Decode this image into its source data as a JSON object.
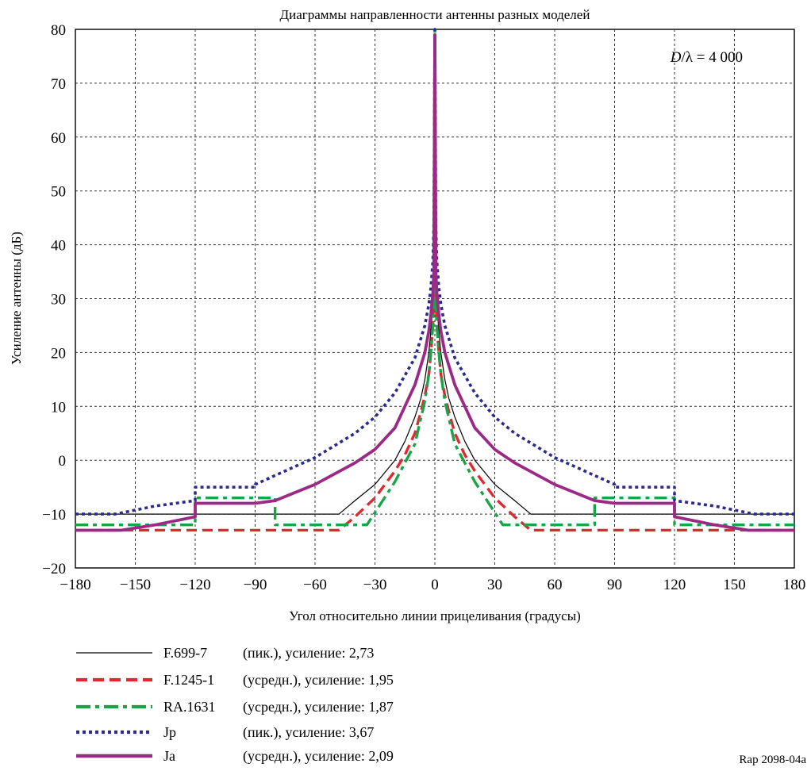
{
  "chart_data": {
    "type": "line",
    "title": "Диаграммы направленности антенны разных моделей",
    "xlabel": "Угол относительно линии прицеливания (градусы)",
    "ylabel": "Усиление антенны (дБ)",
    "xlim": [
      -180,
      180
    ],
    "ylim": [
      -20,
      80
    ],
    "xticks": [
      -180,
      -150,
      -120,
      -90,
      -60,
      -30,
      0,
      30,
      60,
      90,
      120,
      150,
      180
    ],
    "xtick_labels": [
      "−180",
      "−150",
      "−120",
      "−90",
      "−60",
      "−30",
      "0",
      "30",
      "60",
      "90",
      "120",
      "150",
      "180"
    ],
    "yticks": [
      -20,
      -10,
      0,
      10,
      20,
      30,
      40,
      50,
      60,
      70,
      80
    ],
    "ytick_labels": [
      "−20",
      "−10",
      "0",
      "10",
      "20",
      "30",
      "40",
      "50",
      "60",
      "70",
      "80"
    ],
    "grid": true,
    "annotation": {
      "text_prefix": "D",
      "text_suffix": "/λ = 4 000",
      "placement": "top-right"
    },
    "series": [
      {
        "name": "F.699-7",
        "description": "(пик.), усиление: 2,73",
        "color": "#000000",
        "style": "solid-thin",
        "x": [
          -180,
          -48,
          -40,
          -30,
          -20,
          -15,
          -10,
          -7,
          -5,
          -3,
          -2,
          -1,
          -0.5,
          -0.2,
          0,
          0.2,
          0.5,
          1,
          2,
          3,
          5,
          7,
          10,
          15,
          20,
          30,
          40,
          48,
          180
        ],
        "y": [
          -10,
          -10,
          -7.5,
          -4.5,
          0,
          3.5,
          8,
          11.5,
          15,
          20,
          24,
          29,
          35,
          55,
          79,
          55,
          35,
          29,
          24,
          20,
          15,
          11.5,
          8,
          3.5,
          0,
          -4.5,
          -7.5,
          -10,
          -10
        ]
      },
      {
        "name": "F.1245-1",
        "description": "(усредн.), усиление: 1,95",
        "color": "#e0292e",
        "style": "dashed",
        "x": [
          -180,
          -48,
          -40,
          -30,
          -20,
          -15,
          -10,
          -7,
          -5,
          -3,
          -2,
          -1,
          -0.5,
          0,
          0.5,
          1,
          2,
          3,
          5,
          7,
          10,
          15,
          20,
          30,
          40,
          48,
          180
        ],
        "y": [
          -13,
          -13,
          -10.5,
          -7,
          -2,
          1,
          5,
          9,
          12,
          16,
          20,
          25,
          30,
          79,
          30,
          25,
          20,
          16,
          12,
          9,
          5,
          1,
          -2,
          -7,
          -10.5,
          -13,
          -13
        ]
      },
      {
        "name": "RA.1631",
        "description": "(усредн.), усиление: 1,87",
        "color": "#18a548",
        "style": "dashdot",
        "x": [
          -180,
          -120,
          -120,
          -80,
          -80,
          -34,
          -20,
          -10,
          -5,
          -3,
          -2,
          -1,
          -0.5,
          0,
          0.5,
          1,
          2,
          3,
          5,
          10,
          20,
          34,
          80,
          80,
          120,
          120,
          180
        ],
        "y": [
          -12,
          -12,
          -7,
          -7,
          -12,
          -12,
          -4,
          3,
          11,
          16,
          20,
          25,
          29,
          80,
          29,
          25,
          20,
          16,
          11,
          3,
          -4,
          -12,
          -12,
          -7,
          -7,
          -12,
          -12
        ],
        "y_display_note": ""
      },
      {
        "name": "Jp",
        "description": "(пик.), усиление: 3,67",
        "color": "#2b2b8c",
        "style": "dotted",
        "x": [
          -180,
          -160,
          -140,
          -120,
          -120,
          -90,
          -90,
          -60,
          -40,
          -30,
          -20,
          -10,
          -5,
          -3,
          -2,
          -1,
          -0.5,
          0,
          0.5,
          1,
          2,
          3,
          5,
          10,
          20,
          30,
          40,
          60,
          90,
          90,
          120,
          120,
          140,
          160,
          180
        ],
        "y": [
          -10,
          -10,
          -8.5,
          -7.5,
          -5,
          -5,
          -4.5,
          0.5,
          5,
          8,
          12.5,
          19,
          25,
          29,
          32,
          37,
          44,
          80,
          44,
          37,
          32,
          29,
          25,
          19,
          12.5,
          8,
          5,
          0.5,
          -4.5,
          -5,
          -5,
          -7.5,
          -8.5,
          -10,
          -10
        ]
      },
      {
        "name": "Ja",
        "description": "(усредн.), усиление: 2,09",
        "color": "#9b2a86",
        "style": "solid-thick",
        "x": [
          -180,
          -157,
          -140,
          -120,
          -120,
          -90,
          -80,
          -60,
          -40,
          -30,
          -20,
          -10,
          -5,
          -3,
          -2,
          -1,
          -0.5,
          0,
          0.5,
          1,
          2,
          3,
          5,
          10,
          20,
          30,
          40,
          60,
          80,
          90,
          120,
          120,
          140,
          157,
          180
        ],
        "y": [
          -13,
          -13,
          -12,
          -10.5,
          -8,
          -8,
          -7.5,
          -4.5,
          -0.5,
          2,
          6,
          14,
          20,
          24,
          27,
          31,
          35,
          79,
          35,
          31,
          27,
          24,
          20,
          14,
          6,
          2,
          -0.5,
          -4.5,
          -7.5,
          -8,
          -8,
          -10.5,
          -12,
          -13,
          -13
        ]
      }
    ]
  },
  "figure_ref": "Rap 2098-04a"
}
